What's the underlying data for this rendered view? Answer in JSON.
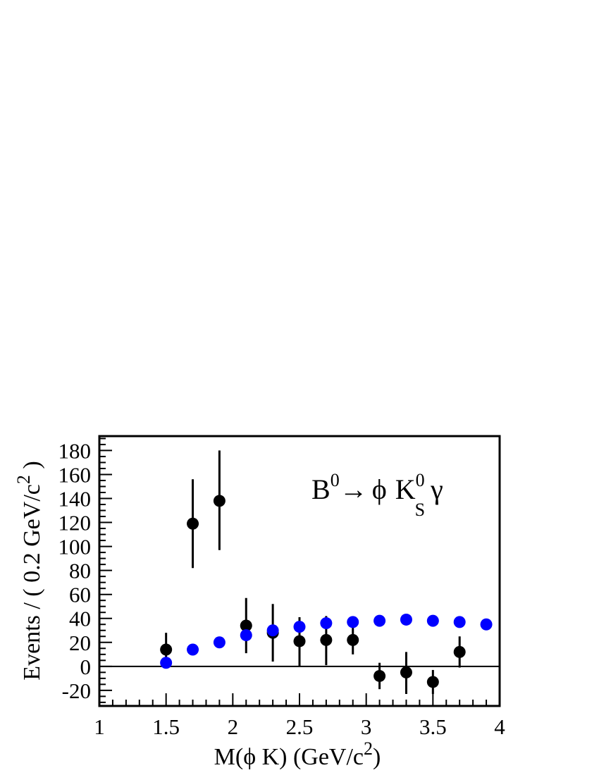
{
  "chart_data": {
    "type": "scatter",
    "xlabel_parts": {
      "before": "M(",
      "phi": "ϕ",
      "middle": " K) (GeV/c",
      "sup": "2",
      "after": ")"
    },
    "ylabel_parts": {
      "before": "Events / ( 0.2 GeV/c",
      "sup": "2",
      "after": " )"
    },
    "annotation": {
      "b": "B",
      "b_sup": "0",
      "arrow": "→",
      "phi": "ϕ",
      "k": "K",
      "k_sub": "S",
      "k_sup": "0",
      "gamma": "γ"
    },
    "xlim": [
      1,
      4
    ],
    "ylim": [
      -33,
      192
    ],
    "x_ticks": [
      "1",
      "1.5",
      "2",
      "2.5",
      "3",
      "3.5",
      "4"
    ],
    "y_ticks": [
      "-20",
      "0",
      "20",
      "40",
      "60",
      "80",
      "100",
      "120",
      "140",
      "160",
      "180"
    ],
    "zero_line": true,
    "series": [
      {
        "color": "#000000",
        "x": [
          1.5,
          1.7,
          1.9,
          2.1,
          2.3,
          2.5,
          2.7,
          2.9,
          3.1,
          3.3,
          3.5,
          3.7
        ],
        "y": [
          14,
          119,
          138,
          34,
          28,
          21,
          22,
          22,
          -8,
          -5,
          -13,
          12
        ],
        "yerr_low": [
          14,
          37,
          41,
          23,
          24,
          21,
          21,
          12,
          11,
          18,
          10,
          13
        ],
        "yerr_high": [
          14,
          37,
          42,
          23,
          24,
          20,
          20,
          12,
          11,
          17,
          10,
          13
        ]
      },
      {
        "color": "#0000ff",
        "x": [
          1.5,
          1.7,
          1.9,
          2.1,
          2.3,
          2.5,
          2.7,
          2.9,
          3.1,
          3.3,
          3.5,
          3.7,
          3.9
        ],
        "y": [
          3,
          14,
          20,
          26,
          30,
          33,
          36,
          37,
          38,
          39,
          38,
          37,
          35
        ]
      }
    ]
  }
}
